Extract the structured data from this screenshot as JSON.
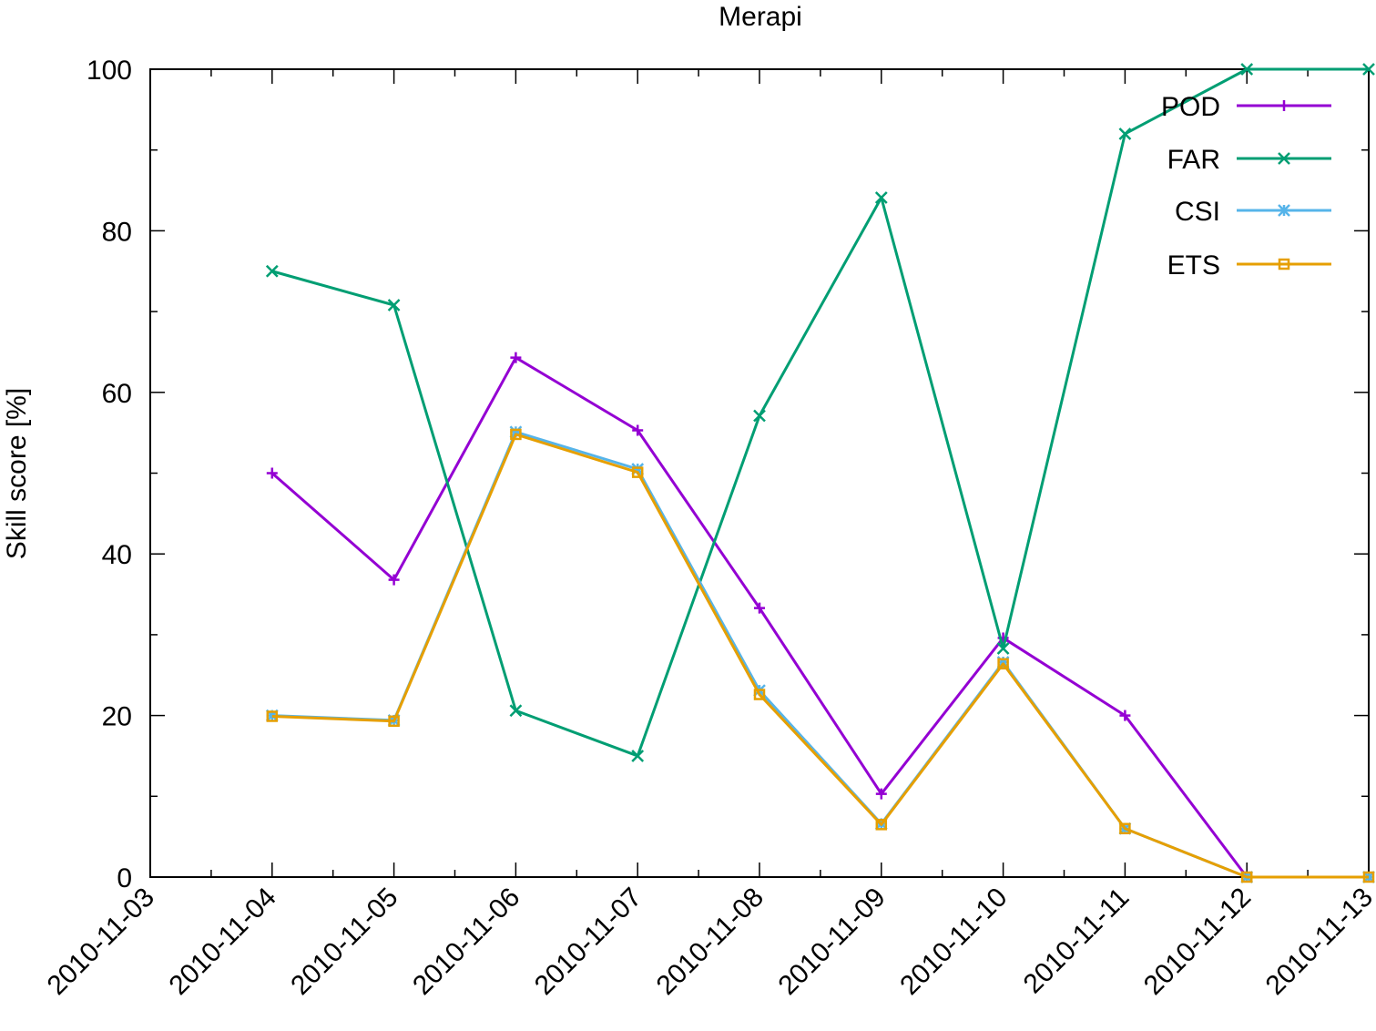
{
  "chart_data": {
    "type": "line",
    "title": "Merapi",
    "xlabel": "",
    "ylabel": "Skill score [%]",
    "x_categories": [
      "2010-11-03",
      "2010-11-04",
      "2010-11-05",
      "2010-11-06",
      "2010-11-07",
      "2010-11-08",
      "2010-11-09",
      "2010-11-10",
      "2010-11-11",
      "2010-11-12",
      "2010-11-13"
    ],
    "ylim": [
      0,
      100
    ],
    "yticks": [
      0,
      20,
      40,
      60,
      80,
      100
    ],
    "grid": false,
    "legend_position": "top-right",
    "x": [
      "2010-11-04",
      "2010-11-05",
      "2010-11-06",
      "2010-11-07",
      "2010-11-08",
      "2010-11-09",
      "2010-11-10",
      "2010-11-11",
      "2010-11-12",
      "2010-11-13"
    ],
    "series": [
      {
        "name": "POD",
        "color": "#9400d3",
        "marker": "plus",
        "values": [
          50,
          36.8,
          64.3,
          55.3,
          33.3,
          10.3,
          29.6,
          20,
          0,
          0
        ]
      },
      {
        "name": "FAR",
        "color": "#009e73",
        "marker": "cross",
        "values": [
          75,
          70.8,
          20.6,
          15,
          57.1,
          84.1,
          28.3,
          92,
          100,
          100
        ]
      },
      {
        "name": "CSI",
        "color": "#56b4e9",
        "marker": "star",
        "values": [
          20,
          19.4,
          55.1,
          50.5,
          23.1,
          6.6,
          26.6,
          6,
          0,
          0
        ]
      },
      {
        "name": "ETS",
        "color": "#e69f00",
        "marker": "square",
        "values": [
          19.9,
          19.3,
          54.8,
          50.1,
          22.6,
          6.5,
          26.4,
          6,
          0,
          0
        ]
      }
    ]
  }
}
